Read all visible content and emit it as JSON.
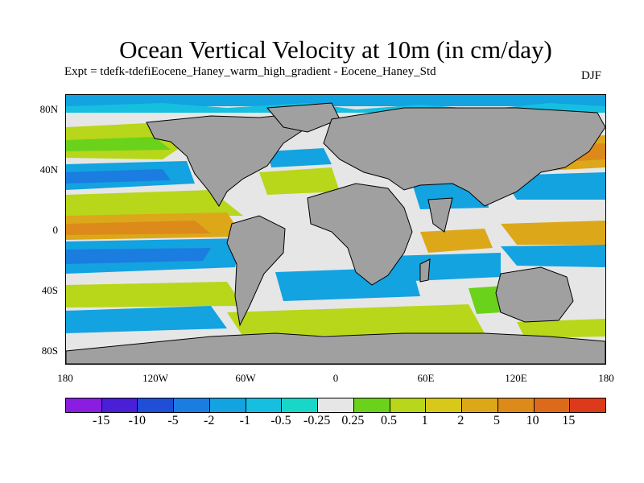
{
  "title": "Ocean Vertical Velocity at 10m (in cm/day)",
  "subtitle": "Expt = tdefk-tdefiEocene_Haney_warm_high_gradient - Eocene_Haney_Std",
  "season": "DJF",
  "lat_ticks": [
    "80N",
    "40N",
    "0",
    "40S",
    "80S"
  ],
  "lon_ticks": [
    "180",
    "120W",
    "60W",
    "0",
    "60E",
    "120E",
    "180"
  ],
  "colorbar": {
    "colors": [
      "#8a1de0",
      "#4a1fd6",
      "#1f4fd6",
      "#1b7de0",
      "#12a3e0",
      "#16bfe0",
      "#18d6c8",
      "#e6e6e6",
      "#6ad21a",
      "#b8d61a",
      "#d8c81a",
      "#dca81a",
      "#dc8a1a",
      "#dc6a1a",
      "#dc3a1a"
    ],
    "labels": [
      "-15",
      "-10",
      "-5",
      "-2",
      "-1",
      "-0.5",
      "-0.25",
      "0.25",
      "0.5",
      "1",
      "2",
      "5",
      "10",
      "15"
    ]
  },
  "legend_colors": {
    "land": "#a0a0a0",
    "near_zero": "#e6e6e6"
  }
}
